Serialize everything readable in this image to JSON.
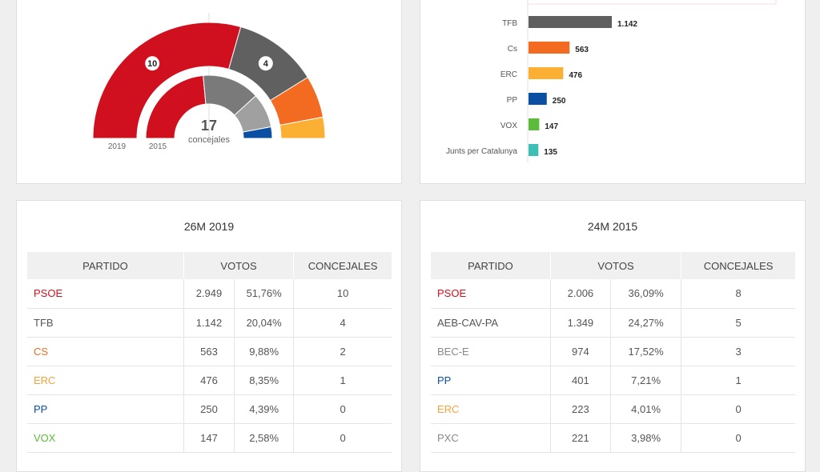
{
  "hemicycle": {
    "total": "17",
    "total_label": "concejales",
    "outer_label": "2019",
    "inner_label": "2015",
    "outer": [
      {
        "party": "PSOE",
        "seats": 10,
        "color": "#d0101e",
        "label": "10"
      },
      {
        "party": "TFB",
        "seats": 4,
        "color": "#606060",
        "label": "4"
      },
      {
        "party": "Cs",
        "seats": 2,
        "color": "#f26b21"
      },
      {
        "party": "ERC",
        "seats": 1,
        "color": "#fbb034"
      }
    ],
    "inner": [
      {
        "party": "PSOE",
        "seats": 8,
        "color": "#d0101e"
      },
      {
        "party": "AEB-CAV-PA",
        "seats": 5,
        "color": "#7a7a7a"
      },
      {
        "party": "BEC-E",
        "seats": 3,
        "color": "#a0a0a0"
      },
      {
        "party": "PP",
        "seats": 1,
        "color": "#0b4fa3"
      }
    ]
  },
  "chart_data": {
    "type": "bar",
    "orientation": "horizontal",
    "categories": [
      "TFB",
      "Cs",
      "ERC",
      "PP",
      "VOX",
      "Junts per Catalunya"
    ],
    "values": [
      1142,
      563,
      476,
      250,
      147,
      135
    ],
    "labels": [
      "1.142",
      "563",
      "476",
      "250",
      "147",
      "135"
    ],
    "colors": [
      "#5f5f5f",
      "#f26b21",
      "#fbb034",
      "#0b4fa3",
      "#5dbb3a",
      "#3dbfb5"
    ]
  },
  "tables": [
    {
      "title": "26M 2019",
      "headers": [
        "PARTIDO",
        "VOTOS",
        "CONCEJALES"
      ],
      "rows": [
        [
          "PSOE",
          "2.949",
          "51,76%",
          "10",
          "#d0101e"
        ],
        [
          "TFB",
          "1.142",
          "20,04%",
          "4",
          "#555555"
        ],
        [
          "CS",
          "563",
          "9,88%",
          "2",
          "#f26b21"
        ],
        [
          "ERC",
          "476",
          "8,35%",
          "1",
          "#f5a23a"
        ],
        [
          "PP",
          "250",
          "4,39%",
          "0",
          "#0b4fa3"
        ],
        [
          "VOX",
          "147",
          "2,58%",
          "0",
          "#5dbb3a"
        ]
      ]
    },
    {
      "title": "24M 2015",
      "headers": [
        "PARTIDO",
        "VOTOS",
        "CONCEJALES"
      ],
      "rows": [
        [
          "PSOE",
          "2.006",
          "36,09%",
          "8",
          "#d0101e"
        ],
        [
          "AEB-CAV-PA",
          "1.349",
          "24,27%",
          "5",
          "#555555"
        ],
        [
          "BEC-E",
          "974",
          "17,52%",
          "3",
          "#888888"
        ],
        [
          "PP",
          "401",
          "7,21%",
          "1",
          "#0b4fa3"
        ],
        [
          "ERC",
          "223",
          "4,01%",
          "0",
          "#f5a23a"
        ],
        [
          "PXC",
          "221",
          "3,98%",
          "0",
          "#888888"
        ]
      ]
    }
  ]
}
